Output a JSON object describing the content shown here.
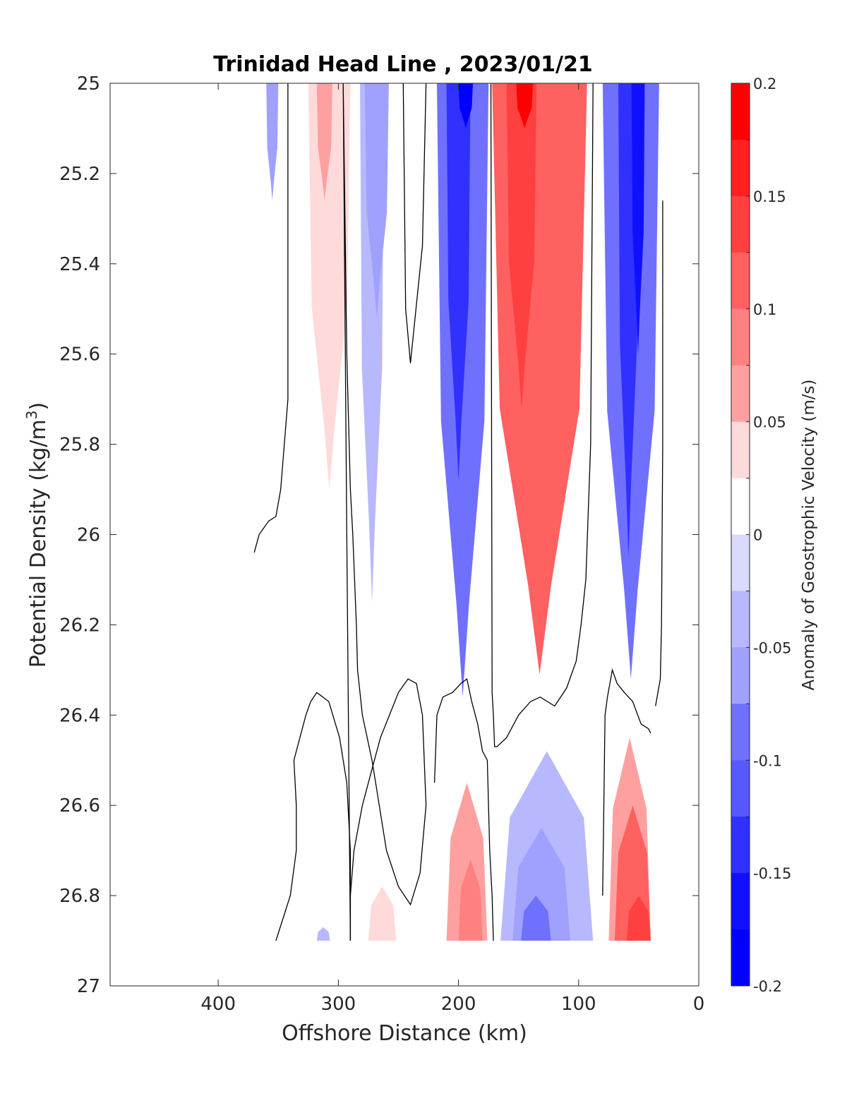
{
  "chart_data": {
    "type": "contourf",
    "title": "Trinidad Head Line , 2023/01/21",
    "xlabel": "Offshore Distance (km)",
    "ylabel": "Potential Density (kg/m^3)",
    "ylabel_main": "Potential Density (kg/m",
    "ylabel_sup": "3",
    "ylabel_close": ")",
    "xlim": [
      490,
      0
    ],
    "x_reversed": true,
    "ylim": [
      25,
      27
    ],
    "y_reversed": true,
    "xticks": [
      400,
      300,
      200,
      100,
      0
    ],
    "xtick_labels": [
      "400",
      "300",
      "200",
      "100",
      "0"
    ],
    "yticks": [
      25,
      25.2,
      25.4,
      25.6,
      25.8,
      26,
      26.2,
      26.4,
      26.6,
      26.8,
      27
    ],
    "ytick_labels": [
      "25",
      "25.2",
      "25.4",
      "25.6",
      "25.8",
      "26",
      "26.2",
      "26.4",
      "26.6",
      "26.8",
      "27"
    ],
    "colorbar": {
      "label": "Anomaly of Geostrophic Velocity (m/s)",
      "range": [
        -0.2,
        0.2
      ],
      "levels": [
        -0.2,
        -0.175,
        -0.15,
        -0.125,
        -0.1,
        -0.075,
        -0.05,
        -0.025,
        0.025,
        0.05,
        0.075,
        0.1,
        0.125,
        0.15,
        0.175,
        0.2
      ],
      "ticks": [
        0.2,
        0.15,
        0.1,
        0.05,
        0,
        -0.05,
        -0.1,
        -0.15,
        -0.2
      ],
      "tick_labels": [
        "0.2",
        "0.15",
        "0.1",
        "0.05",
        "0",
        "-0.05",
        "-0.1",
        "-0.15",
        "-0.2"
      ],
      "colors_top_to_bottom": [
        "#ff0000",
        "#ff2020",
        "#ff4040",
        "#ff6060",
        "#ff8080",
        "#ffa0a0",
        "#ffdada",
        "#ffffff",
        "#dadaff",
        "#b8b8ff",
        "#a0a0ff",
        "#7070ff",
        "#5858ff",
        "#3030ff",
        "#1010ff",
        "#0000ff"
      ]
    },
    "regions": [
      {
        "x": [
          360,
          338,
          338,
          352,
          353,
          360
        ],
        "y": [
          25,
          25,
          25.6,
          25.6,
          25.6,
          25.6
        ],
        "value": -0.04,
        "lower_edge": [
          [
            360,
            25.55
          ],
          [
            355,
            25.66
          ],
          [
            347,
            25.6
          ],
          [
            347,
            25.0
          ]
        ]
      },
      {
        "x": [
          360,
          350
        ],
        "y": [
          25,
          25.26
        ],
        "value": -0.06
      },
      {
        "x": [
          325,
          290
        ],
        "y": [
          25,
          25.9
        ],
        "value": 0.04
      },
      {
        "x": [
          318,
          305
        ],
        "y": [
          25,
          25.26
        ],
        "value": 0.07
      },
      {
        "x": [
          282,
          262
        ],
        "y": [
          25,
          26.15
        ],
        "value": -0.04
      },
      {
        "x": [
          278,
          258
        ],
        "y": [
          25,
          25.52
        ],
        "value": -0.06
      },
      {
        "x": [
          218,
          175
        ],
        "y": [
          25,
          26.36
        ],
        "value": -0.09
      },
      {
        "x": [
          210,
          190
        ],
        "y": [
          25,
          25.88
        ],
        "value": -0.15
      },
      {
        "x": [
          200,
          188
        ],
        "y": [
          25,
          25.1
        ],
        "value": -0.18
      },
      {
        "x": [
          172,
          93
        ],
        "y": [
          25,
          26.31
        ],
        "value": 0.1
      },
      {
        "x": [
          160,
          135
        ],
        "y": [
          25,
          25.72
        ],
        "value": 0.15
      },
      {
        "x": [
          152,
          138
        ],
        "y": [
          25,
          25.1
        ],
        "value": 0.19
      },
      {
        "x": [
          80,
          33
        ],
        "y": [
          25,
          26.32
        ],
        "value": -0.09
      },
      {
        "x": [
          67,
          50
        ],
        "y": [
          25,
          26.05
        ],
        "value": -0.13
      },
      {
        "x": [
          56,
          45
        ],
        "y": [
          25,
          25.6
        ],
        "value": -0.17
      },
      {
        "x": [
          210,
          176
        ],
        "y": [
          26.55,
          26.9
        ],
        "value": 0.05
      },
      {
        "x": [
          200,
          180
        ],
        "y": [
          26.72,
          26.9
        ],
        "value": 0.08
      },
      {
        "x": [
          275,
          252
        ],
        "y": [
          26.78,
          26.9
        ],
        "value": 0.04
      },
      {
        "x": [
          318,
          307
        ],
        "y": [
          26.87,
          26.9
        ],
        "value": -0.04
      },
      {
        "x": [
          165,
          88
        ],
        "y": [
          26.48,
          26.9
        ],
        "value": -0.04
      },
      {
        "x": [
          155,
          107
        ],
        "y": [
          26.65,
          26.9
        ],
        "value": -0.07
      },
      {
        "x": [
          148,
          123
        ],
        "y": [
          26.8,
          26.9
        ],
        "value": -0.1
      },
      {
        "x": [
          75,
          40
        ],
        "y": [
          26.45,
          26.9
        ],
        "value": 0.06
      },
      {
        "x": [
          70,
          40
        ],
        "y": [
          26.6,
          26.9
        ],
        "value": 0.1
      },
      {
        "x": [
          60,
          40
        ],
        "y": [
          26.8,
          26.9
        ],
        "value": 0.15
      }
    ],
    "zero_contours": [
      {
        "x": [
          370,
          366,
          358,
          352,
          348,
          345,
          342,
          342
        ],
        "y": [
          26.04,
          26.0,
          25.97,
          25.96,
          25.9,
          25.8,
          25.7,
          25.0
        ]
      },
      {
        "x": [
          352,
          340,
          335,
          335,
          337,
          327,
          323,
          318,
          308,
          299,
          293,
          290,
          290
        ],
        "y": [
          26.9,
          26.8,
          26.7,
          26.6,
          26.5,
          26.4,
          26.37,
          26.35,
          26.37,
          26.45,
          26.55,
          26.7,
          26.9
        ]
      },
      {
        "x": [
          296,
          293,
          290,
          288,
          285,
          284,
          282,
          280,
          276,
          272,
          269,
          266,
          260,
          250,
          240,
          232,
          227,
          230,
          235,
          242,
          250,
          265,
          270,
          275,
          280,
          287,
          290,
          290,
          293,
          296
        ],
        "y": [
          25.0,
          25.6,
          25.9,
          26.0,
          26.2,
          26.3,
          26.35,
          26.4,
          26.45,
          26.5,
          26.55,
          26.6,
          26.7,
          26.78,
          26.82,
          26.75,
          26.6,
          26.4,
          26.33,
          26.32,
          26.35,
          26.45,
          26.5,
          26.55,
          26.6,
          26.7,
          26.8,
          26.9,
          26.0,
          25.0
        ]
      },
      {
        "x": [
          246,
          244,
          240,
          230,
          227
        ],
        "y": [
          25.0,
          25.5,
          25.62,
          25.36,
          25.0
        ]
      },
      {
        "x": [
          220,
          218,
          213,
          205,
          198,
          193,
          189,
          184,
          180,
          176,
          174,
          172,
          171
        ],
        "y": [
          26.55,
          26.4,
          26.36,
          26.35,
          26.33,
          26.32,
          26.37,
          26.42,
          26.48,
          26.5,
          26.7,
          26.8,
          26.9
        ]
      },
      {
        "x": [
          173,
          172,
          171,
          170,
          168,
          160,
          150,
          140,
          132,
          120,
          110,
          102,
          98,
          94,
          90,
          88
        ],
        "y": [
          25.0,
          26.35,
          26.4,
          26.47,
          26.47,
          26.45,
          26.4,
          26.37,
          26.36,
          26.38,
          26.34,
          26.28,
          26.2,
          26.1,
          25.8,
          25.0
        ]
      },
      {
        "x": [
          80,
          79,
          78,
          76,
          72,
          68,
          62,
          55,
          48,
          42,
          40
        ],
        "y": [
          26.8,
          26.6,
          26.4,
          26.36,
          26.3,
          26.33,
          26.35,
          26.37,
          26.42,
          26.43,
          26.44
        ]
      },
      {
        "x": [
          30,
          30,
          31,
          32,
          36
        ],
        "y": [
          25.26,
          25.8,
          26.2,
          26.32,
          26.38
        ]
      }
    ]
  }
}
